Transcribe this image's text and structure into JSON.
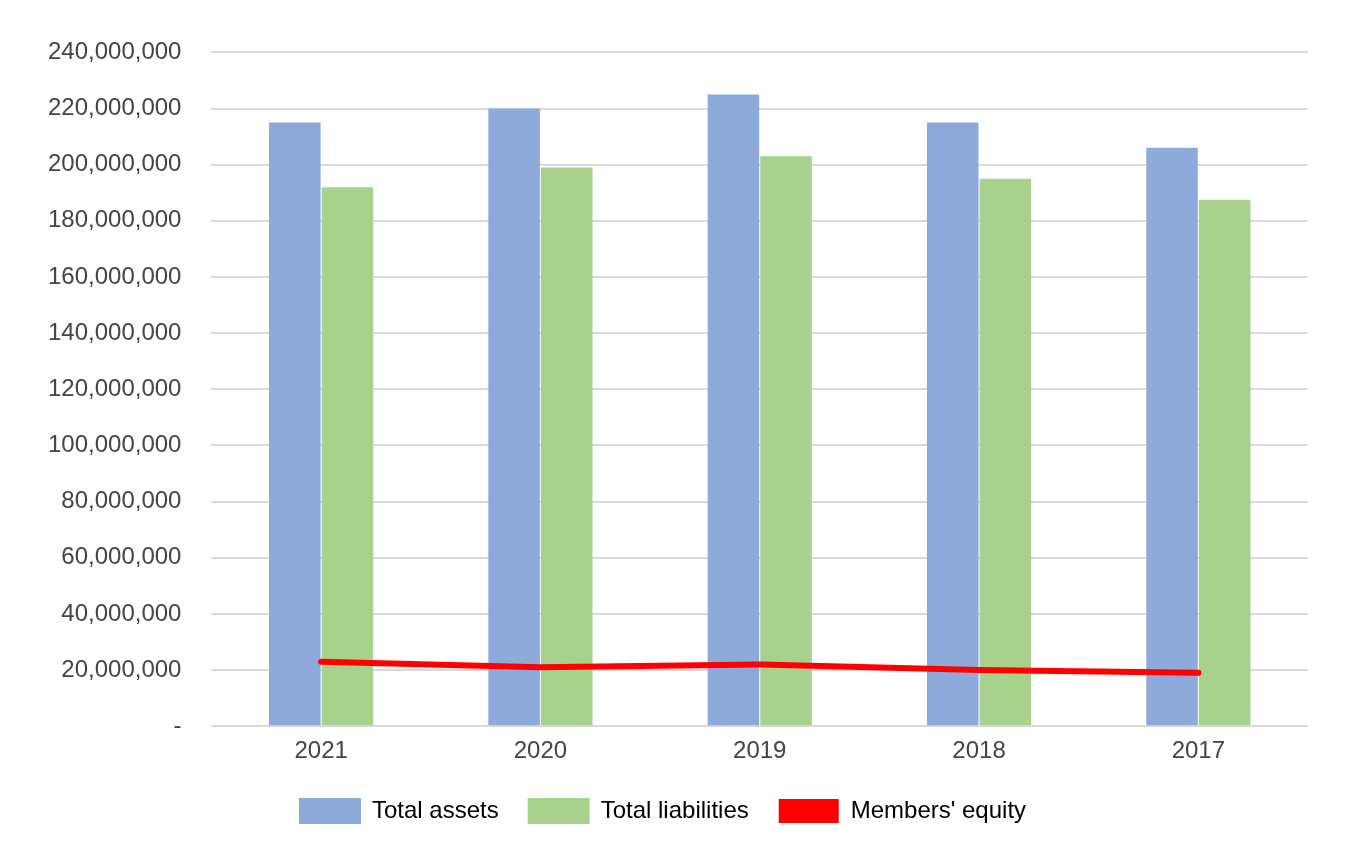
{
  "chart_data": {
    "type": "bar",
    "categories": [
      "2021",
      "2020",
      "2019",
      "2018",
      "2017"
    ],
    "series": [
      {
        "name": "Total assets",
        "color": "#8eaadb",
        "values": [
          215000000,
          220000000,
          225000000,
          215000000,
          206000000
        ]
      },
      {
        "name": "Total liabilities",
        "color": "#a9d18e",
        "values": [
          192000000,
          199000000,
          203000000,
          195000000,
          187500000
        ]
      },
      {
        "name": "Members' equity",
        "type": "line",
        "color": "#ff0000",
        "marker": "none",
        "values": [
          23000000,
          21000000,
          22000000,
          20000000,
          19000000
        ]
      }
    ],
    "ylim": [
      0,
      240000000
    ],
    "yticks": [
      {
        "value": 0,
        "label": "-"
      },
      {
        "value": 20000000,
        "label": "20,000,000"
      },
      {
        "value": 40000000,
        "label": "40,000,000"
      },
      {
        "value": 60000000,
        "label": "60,000,000"
      },
      {
        "value": 80000000,
        "label": "80,000,000"
      },
      {
        "value": 100000000,
        "label": "100,000,000"
      },
      {
        "value": 120000000,
        "label": "120,000,000"
      },
      {
        "value": 140000000,
        "label": "140,000,000"
      },
      {
        "value": 160000000,
        "label": "160,000,000"
      },
      {
        "value": 180000000,
        "label": "180,000,000"
      },
      {
        "value": 200000000,
        "label": "200,000,000"
      },
      {
        "value": 220000000,
        "label": "220,000,000"
      },
      {
        "value": 240000000,
        "label": "240,000,000"
      }
    ],
    "grid": "y",
    "legend": "bottom"
  }
}
